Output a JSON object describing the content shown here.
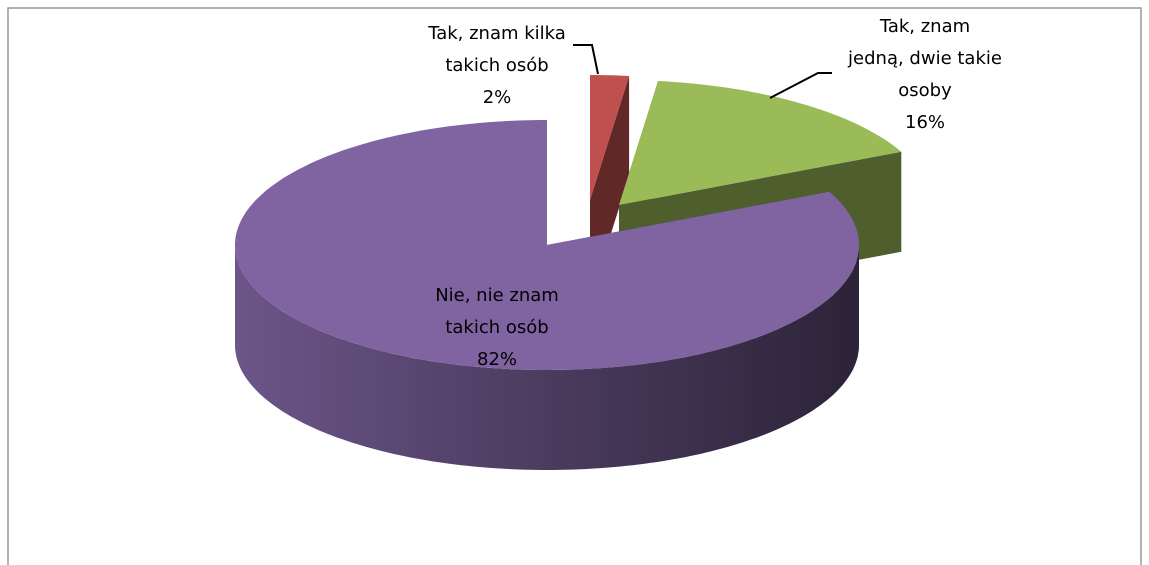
{
  "chart_data": {
    "type": "pie3d",
    "categories": [
      "Tak, znam kilka\ntakich osób",
      "Tak, znam\njedną, dwie takie\nosoby",
      "Nie, nie znam\ntakich osób"
    ],
    "values": [
      2,
      16,
      82
    ],
    "value_labels": [
      "2%",
      "16%",
      "82%"
    ],
    "colors": [
      "#c0504d",
      "#9bbb59",
      "#8064a2"
    ]
  }
}
